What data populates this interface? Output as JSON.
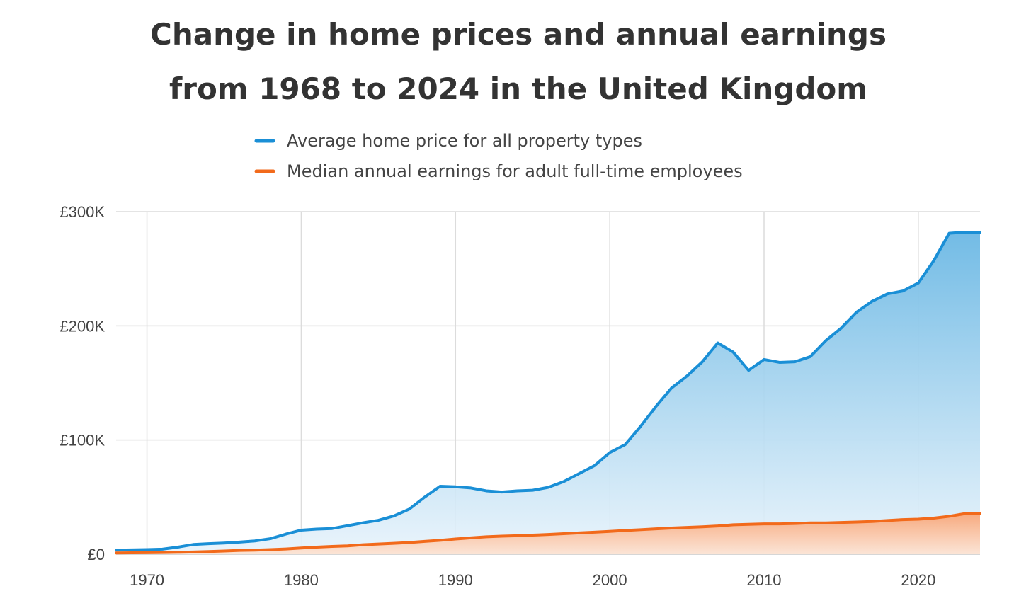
{
  "chart_data": {
    "type": "area",
    "title": "Change in home prices and annual earnings from 1968 to 2024 in the United Kingdom",
    "title_lines": [
      "Change in home prices and annual earnings",
      "from 1968 to 2024 in the United Kingdom"
    ],
    "xlabel": "",
    "ylabel": "",
    "xlim": [
      1968,
      2024
    ],
    "ylim": [
      0,
      300000
    ],
    "grid": true,
    "legend_position": "top-center",
    "x_ticks": [
      1970,
      1980,
      1990,
      2000,
      2010,
      2020
    ],
    "x_tick_labels": [
      "1970",
      "1980",
      "1990",
      "2000",
      "2010",
      "2020"
    ],
    "y_ticks": [
      0,
      100000,
      200000,
      300000
    ],
    "y_tick_labels": [
      "£0",
      "£100K",
      "£200K",
      "£300K"
    ],
    "x": [
      1968,
      1969,
      1970,
      1971,
      1972,
      1973,
      1974,
      1975,
      1976,
      1977,
      1978,
      1979,
      1980,
      1981,
      1982,
      1983,
      1984,
      1985,
      1986,
      1987,
      1988,
      1989,
      1990,
      1991,
      1992,
      1993,
      1994,
      1995,
      1996,
      1997,
      1998,
      1999,
      2000,
      2001,
      2002,
      2003,
      2004,
      2005,
      2006,
      2007,
      2008,
      2009,
      2010,
      2011,
      2012,
      2013,
      2014,
      2015,
      2016,
      2017,
      2018,
      2019,
      2020,
      2021,
      2022,
      2023,
      2024
    ],
    "series": [
      {
        "name": "Average home price for all property types",
        "color": "#1a8fd6",
        "values": [
          3600,
          3800,
          4000,
          4400,
          6200,
          8500,
          9200,
          9800,
          10600,
          11600,
          13600,
          17600,
          21100,
          22000,
          22500,
          25000,
          27500,
          29700,
          33500,
          39500,
          50000,
          59500,
          59000,
          58000,
          55500,
          54500,
          55500,
          56000,
          58500,
          63500,
          70500,
          77500,
          89000,
          96000,
          112000,
          129500,
          145500,
          156000,
          168500,
          185000,
          177000,
          161000,
          170500,
          168000,
          168500,
          173000,
          187000,
          198000,
          212000,
          221500,
          228000,
          230500,
          237500,
          257000,
          281000,
          282000,
          281500
        ]
      },
      {
        "name": "Median annual earnings for adult full-time employees",
        "color": "#f26a1b",
        "values": [
          1100,
          1200,
          1350,
          1500,
          1700,
          1950,
          2300,
          2800,
          3300,
          3600,
          4000,
          4600,
          5400,
          6200,
          6800,
          7300,
          8300,
          8900,
          9500,
          10200,
          11200,
          12200,
          13300,
          14300,
          15300,
          15800,
          16200,
          16700,
          17300,
          18000,
          18700,
          19300,
          20000,
          20800,
          21500,
          22200,
          22900,
          23500,
          24000,
          24700,
          25800,
          26200,
          26600,
          26600,
          26900,
          27400,
          27400,
          27800,
          28200,
          28700,
          29500,
          30300,
          30700,
          31600,
          33200,
          35500,
          35500
        ]
      }
    ]
  }
}
